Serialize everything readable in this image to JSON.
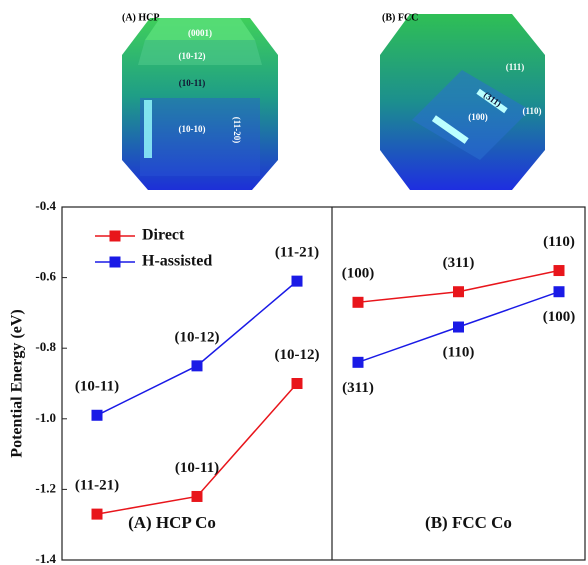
{
  "images": [
    {
      "title": "(A) HCP",
      "facets": [
        "(0001)",
        "(10-12)",
        "(10-11)",
        "(10-10)",
        "(11-20)"
      ]
    },
    {
      "title": "(B) FCC",
      "facets": [
        "(111)",
        "(311)",
        "(100)",
        "(110)"
      ]
    }
  ],
  "chart_data": [
    {
      "type": "line",
      "title": "(A) HCP Co",
      "y_label": "Potential Energy (eV)",
      "ylim": [
        -1.4,
        -0.4
      ],
      "yticks": [
        -0.4,
        -0.6,
        -0.8,
        {
          "value": -1,
          "label": "-1.0"
        },
        -1.2,
        -1.4
      ],
      "legend": "upper left",
      "series": [
        {
          "name": "Direct",
          "color": "#e8151b",
          "values": [
            -1.27,
            -1.22,
            -0.9
          ],
          "point_labels": [
            "(11-21)",
            "(10-11)",
            "(10-12)"
          ]
        },
        {
          "name": "H-assisted",
          "color": "#1a1ae6",
          "values": [
            -0.99,
            -0.85,
            -0.61
          ],
          "point_labels": [
            "(10-11)",
            "(10-12)",
            "(11-21)"
          ]
        }
      ]
    },
    {
      "type": "line",
      "title": "(B) FCC Co",
      "ylim": [
        -1.4,
        -0.4
      ],
      "series": [
        {
          "color": "#e8151b",
          "values": [
            -0.67,
            -0.64,
            -0.58
          ],
          "point_labels": [
            "(100)",
            "(311)",
            "(110)"
          ]
        },
        {
          "color": "#1a1ae6",
          "values": [
            -0.84,
            -0.74,
            -0.64
          ],
          "point_labels": [
            "(311)",
            "(110)",
            "(100)"
          ]
        }
      ]
    }
  ]
}
